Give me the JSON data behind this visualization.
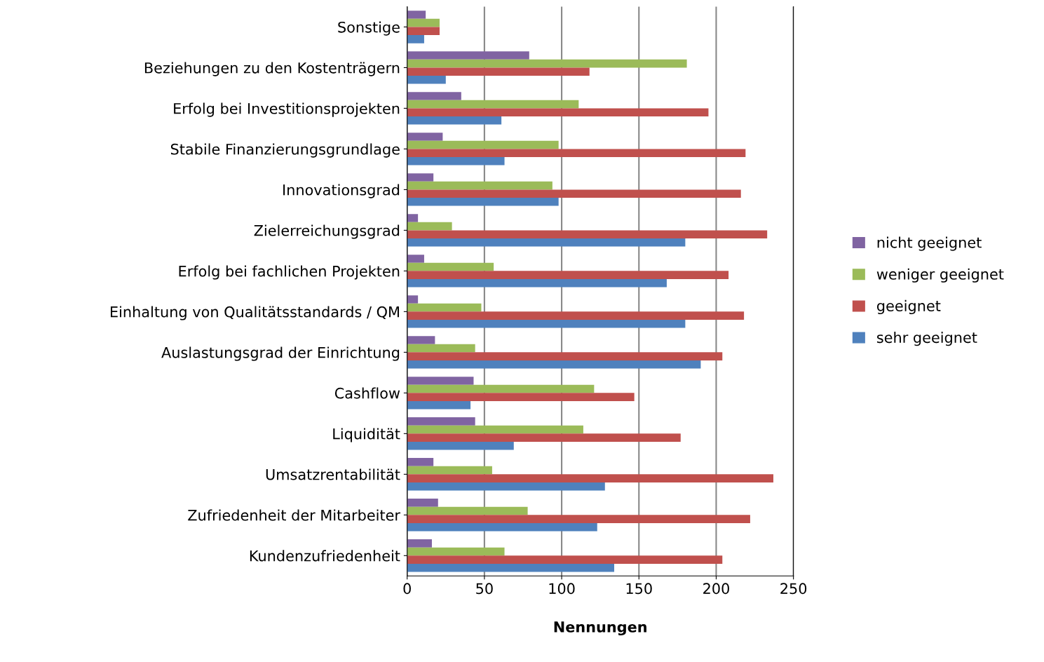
{
  "chart_data": {
    "type": "bar",
    "orientation": "horizontal",
    "xlabel": "Nennungen",
    "categories": [
      "Sonstige",
      "Beziehungen zu den Kostenträgern",
      "Erfolg bei Investitionsprojekten",
      "Stabile Finanzierungsgrundlage",
      "Innovationsgrad",
      "Zielerreichungsgrad",
      "Erfolg bei fachlichen Projekten",
      "Einhaltung von Qualitätsstandards / QM",
      "Auslastungsgrad der Einrichtung",
      "Cashflow",
      "Liquidität",
      "Umsatzrentabilität",
      "Zufriedenheit der Mitarbeiter",
      "Kundenzufriedenheit"
    ],
    "series": [
      {
        "name": "nicht geeignet",
        "color": "#8064a2",
        "values": [
          12,
          79,
          35,
          23,
          17,
          7,
          11,
          7,
          18,
          43,
          44,
          17,
          20,
          16
        ]
      },
      {
        "name": "weniger geeignet",
        "color": "#9bbb59",
        "values": [
          21,
          181,
          111,
          98,
          94,
          29,
          56,
          48,
          44,
          121,
          114,
          55,
          78,
          63
        ]
      },
      {
        "name": "geeignet",
        "color": "#c0504d",
        "values": [
          21,
          118,
          195,
          219,
          216,
          233,
          208,
          218,
          204,
          147,
          177,
          237,
          222,
          204
        ]
      },
      {
        "name": "sehr geeignet",
        "color": "#4f81bd",
        "values": [
          11,
          25,
          61,
          63,
          98,
          180,
          168,
          180,
          190,
          41,
          69,
          128,
          123,
          134
        ]
      }
    ],
    "xlim": [
      0,
      250
    ],
    "xticks": [
      0,
      50,
      100,
      150,
      200,
      250
    ],
    "grid": "x",
    "legend": "right"
  }
}
